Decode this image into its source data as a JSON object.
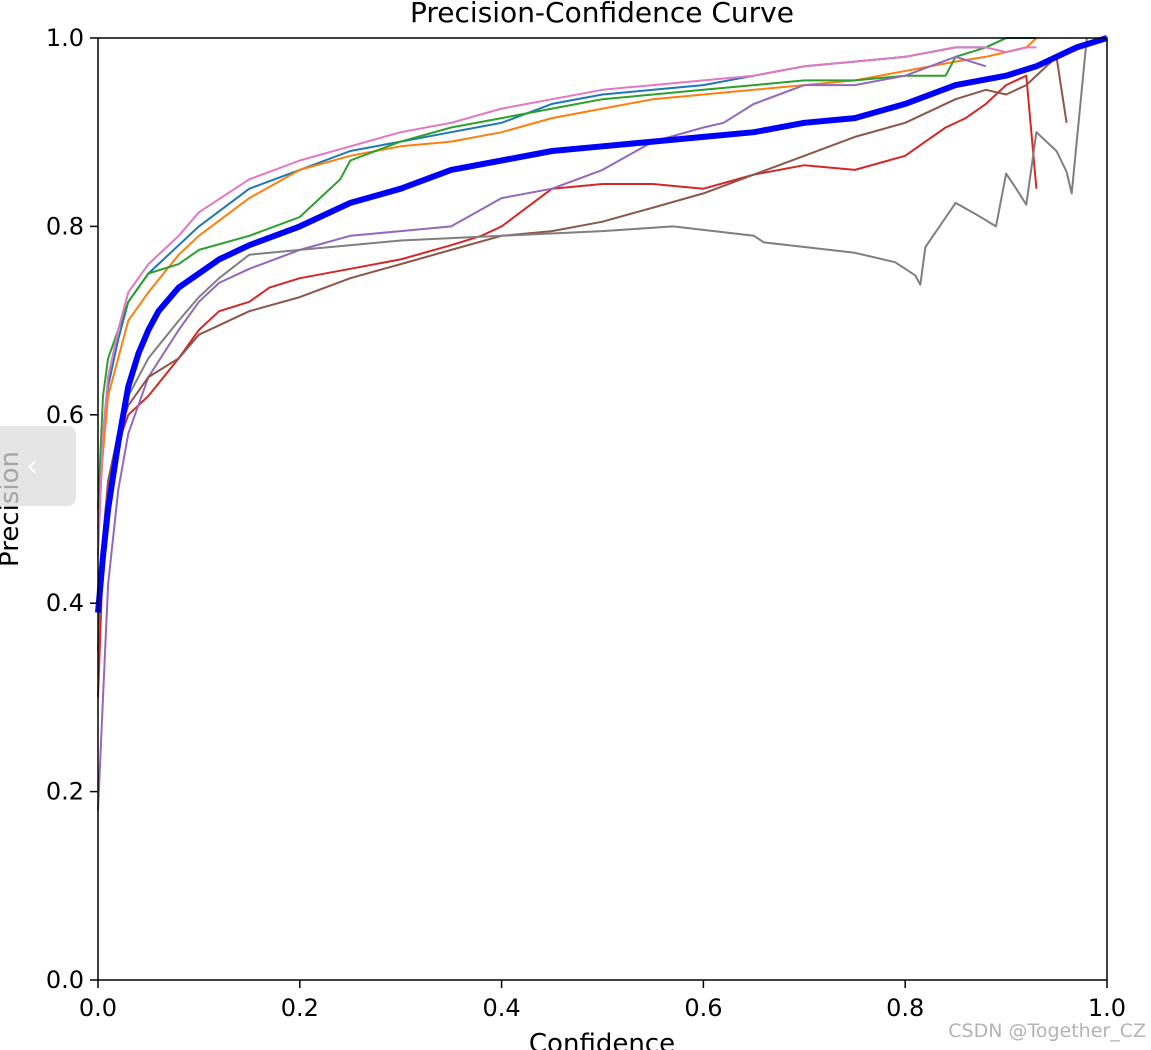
{
  "chart_data": {
    "type": "line",
    "title": "Precision-Confidence Curve",
    "xlabel": "Confidence",
    "ylabel": "Precision",
    "xlim": [
      0.0,
      1.0
    ],
    "ylim": [
      0.0,
      1.0
    ],
    "xticks": [
      "0.0",
      "0.2",
      "0.4",
      "0.6",
      "0.8",
      "1.0"
    ],
    "yticks": [
      "0.0",
      "0.2",
      "0.4",
      "0.6",
      "0.8",
      "1.0"
    ],
    "grid": false,
    "legend": "none",
    "series": [
      {
        "color": "#1f77b4",
        "width": 2,
        "x": [
          0.0,
          0.005,
          0.01,
          0.02,
          0.03,
          0.05,
          0.08,
          0.1,
          0.15,
          0.2,
          0.25,
          0.3,
          0.35,
          0.4,
          0.45,
          0.5,
          0.55,
          0.6,
          0.65,
          0.7,
          0.75,
          0.8,
          0.85,
          0.88,
          0.9,
          0.93
        ],
        "y": [
          0.5,
          0.58,
          0.63,
          0.68,
          0.72,
          0.75,
          0.78,
          0.8,
          0.84,
          0.86,
          0.88,
          0.89,
          0.9,
          0.91,
          0.93,
          0.94,
          0.945,
          0.95,
          0.96,
          0.97,
          0.975,
          0.98,
          0.99,
          0.99,
          1.0,
          1.0
        ]
      },
      {
        "color": "#ff7f0e",
        "width": 2,
        "x": [
          0.0,
          0.005,
          0.01,
          0.02,
          0.03,
          0.05,
          0.08,
          0.1,
          0.15,
          0.2,
          0.25,
          0.3,
          0.35,
          0.4,
          0.45,
          0.5,
          0.55,
          0.6,
          0.65,
          0.7,
          0.75,
          0.8,
          0.85,
          0.88,
          0.9,
          0.92,
          0.93
        ],
        "y": [
          0.48,
          0.56,
          0.62,
          0.66,
          0.7,
          0.73,
          0.77,
          0.79,
          0.83,
          0.86,
          0.875,
          0.885,
          0.89,
          0.9,
          0.915,
          0.925,
          0.935,
          0.94,
          0.945,
          0.95,
          0.955,
          0.965,
          0.975,
          0.98,
          0.985,
          0.99,
          1.0
        ]
      },
      {
        "color": "#2ca02c",
        "width": 2,
        "x": [
          0.0,
          0.005,
          0.01,
          0.02,
          0.03,
          0.05,
          0.08,
          0.1,
          0.15,
          0.2,
          0.22,
          0.24,
          0.25,
          0.3,
          0.35,
          0.4,
          0.45,
          0.5,
          0.55,
          0.6,
          0.65,
          0.7,
          0.75,
          0.8,
          0.84,
          0.85,
          0.88,
          0.9
        ],
        "y": [
          0.5,
          0.62,
          0.66,
          0.69,
          0.72,
          0.75,
          0.76,
          0.775,
          0.79,
          0.81,
          0.83,
          0.85,
          0.87,
          0.89,
          0.905,
          0.915,
          0.925,
          0.935,
          0.94,
          0.945,
          0.95,
          0.955,
          0.955,
          0.96,
          0.96,
          0.98,
          0.99,
          1.0
        ]
      },
      {
        "color": "#d62728",
        "width": 2,
        "x": [
          0.0,
          0.005,
          0.01,
          0.02,
          0.03,
          0.05,
          0.08,
          0.1,
          0.12,
          0.15,
          0.17,
          0.2,
          0.25,
          0.3,
          0.35,
          0.38,
          0.4,
          0.45,
          0.5,
          0.55,
          0.6,
          0.65,
          0.7,
          0.75,
          0.8,
          0.82,
          0.84,
          0.86,
          0.88,
          0.9,
          0.92,
          0.93
        ],
        "y": [
          0.3,
          0.45,
          0.52,
          0.57,
          0.6,
          0.62,
          0.66,
          0.69,
          0.71,
          0.72,
          0.735,
          0.745,
          0.755,
          0.765,
          0.78,
          0.79,
          0.8,
          0.84,
          0.845,
          0.845,
          0.84,
          0.855,
          0.865,
          0.86,
          0.875,
          0.89,
          0.905,
          0.915,
          0.93,
          0.95,
          0.96,
          0.84
        ]
      },
      {
        "color": "#9467bd",
        "width": 2,
        "x": [
          0.0,
          0.005,
          0.01,
          0.02,
          0.03,
          0.05,
          0.08,
          0.1,
          0.12,
          0.15,
          0.2,
          0.25,
          0.3,
          0.35,
          0.4,
          0.45,
          0.5,
          0.55,
          0.6,
          0.62,
          0.65,
          0.7,
          0.75,
          0.8,
          0.85,
          0.88
        ],
        "y": [
          0.18,
          0.3,
          0.42,
          0.52,
          0.58,
          0.64,
          0.69,
          0.72,
          0.74,
          0.755,
          0.775,
          0.79,
          0.795,
          0.8,
          0.83,
          0.84,
          0.86,
          0.89,
          0.905,
          0.91,
          0.93,
          0.95,
          0.95,
          0.96,
          0.98,
          0.97
        ]
      },
      {
        "color": "#8c564b",
        "width": 2,
        "x": [
          0.0,
          0.005,
          0.01,
          0.02,
          0.03,
          0.05,
          0.08,
          0.1,
          0.12,
          0.15,
          0.2,
          0.25,
          0.3,
          0.35,
          0.4,
          0.45,
          0.5,
          0.55,
          0.6,
          0.65,
          0.7,
          0.75,
          0.8,
          0.85,
          0.88,
          0.9,
          0.92,
          0.95,
          0.96
        ],
        "y": [
          0.35,
          0.47,
          0.53,
          0.58,
          0.61,
          0.64,
          0.66,
          0.685,
          0.695,
          0.71,
          0.725,
          0.745,
          0.76,
          0.775,
          0.79,
          0.795,
          0.805,
          0.82,
          0.835,
          0.855,
          0.875,
          0.895,
          0.91,
          0.935,
          0.945,
          0.94,
          0.95,
          0.98,
          0.91
        ]
      },
      {
        "color": "#e377c2",
        "width": 2,
        "x": [
          0.0,
          0.005,
          0.01,
          0.02,
          0.03,
          0.05,
          0.08,
          0.1,
          0.15,
          0.2,
          0.25,
          0.3,
          0.35,
          0.4,
          0.45,
          0.5,
          0.55,
          0.6,
          0.65,
          0.7,
          0.75,
          0.8,
          0.85,
          0.88,
          0.9,
          0.92,
          0.93
        ],
        "y": [
          0.45,
          0.58,
          0.64,
          0.69,
          0.73,
          0.76,
          0.79,
          0.815,
          0.85,
          0.87,
          0.885,
          0.9,
          0.91,
          0.925,
          0.935,
          0.945,
          0.95,
          0.955,
          0.96,
          0.97,
          0.975,
          0.98,
          0.99,
          0.99,
          0.985,
          0.99,
          0.99
        ]
      },
      {
        "color": "#7f7f7f",
        "width": 2,
        "x": [
          0.0,
          0.01,
          0.02,
          0.03,
          0.05,
          0.08,
          0.1,
          0.12,
          0.15,
          0.2,
          0.3,
          0.4,
          0.5,
          0.57,
          0.65,
          0.66,
          0.75,
          0.79,
          0.81,
          0.815,
          0.82,
          0.85,
          0.87,
          0.89,
          0.9,
          0.91,
          0.92,
          0.93,
          0.95,
          0.96,
          0.965,
          0.98
        ],
        "y": [
          0.4,
          0.5,
          0.57,
          0.62,
          0.66,
          0.7,
          0.725,
          0.745,
          0.77,
          0.775,
          0.785,
          0.79,
          0.795,
          0.8,
          0.79,
          0.783,
          0.772,
          0.762,
          0.748,
          0.738,
          0.778,
          0.825,
          0.813,
          0.8,
          0.856,
          0.84,
          0.823,
          0.9,
          0.88,
          0.858,
          0.835,
          1.0
        ]
      },
      {
        "color": "#0000ff",
        "width": 6,
        "x": [
          0.0,
          0.005,
          0.01,
          0.02,
          0.03,
          0.04,
          0.05,
          0.06,
          0.08,
          0.1,
          0.12,
          0.15,
          0.2,
          0.25,
          0.3,
          0.35,
          0.4,
          0.45,
          0.5,
          0.55,
          0.6,
          0.65,
          0.7,
          0.75,
          0.8,
          0.85,
          0.9,
          0.93,
          0.95,
          0.97,
          1.0
        ],
        "y": [
          0.39,
          0.45,
          0.5,
          0.57,
          0.63,
          0.665,
          0.69,
          0.71,
          0.735,
          0.75,
          0.765,
          0.78,
          0.8,
          0.825,
          0.84,
          0.86,
          0.87,
          0.88,
          0.885,
          0.89,
          0.895,
          0.9,
          0.91,
          0.915,
          0.93,
          0.95,
          0.96,
          0.97,
          0.98,
          0.99,
          1.0
        ]
      }
    ]
  },
  "watermark": "CSDN @Together_CZ"
}
